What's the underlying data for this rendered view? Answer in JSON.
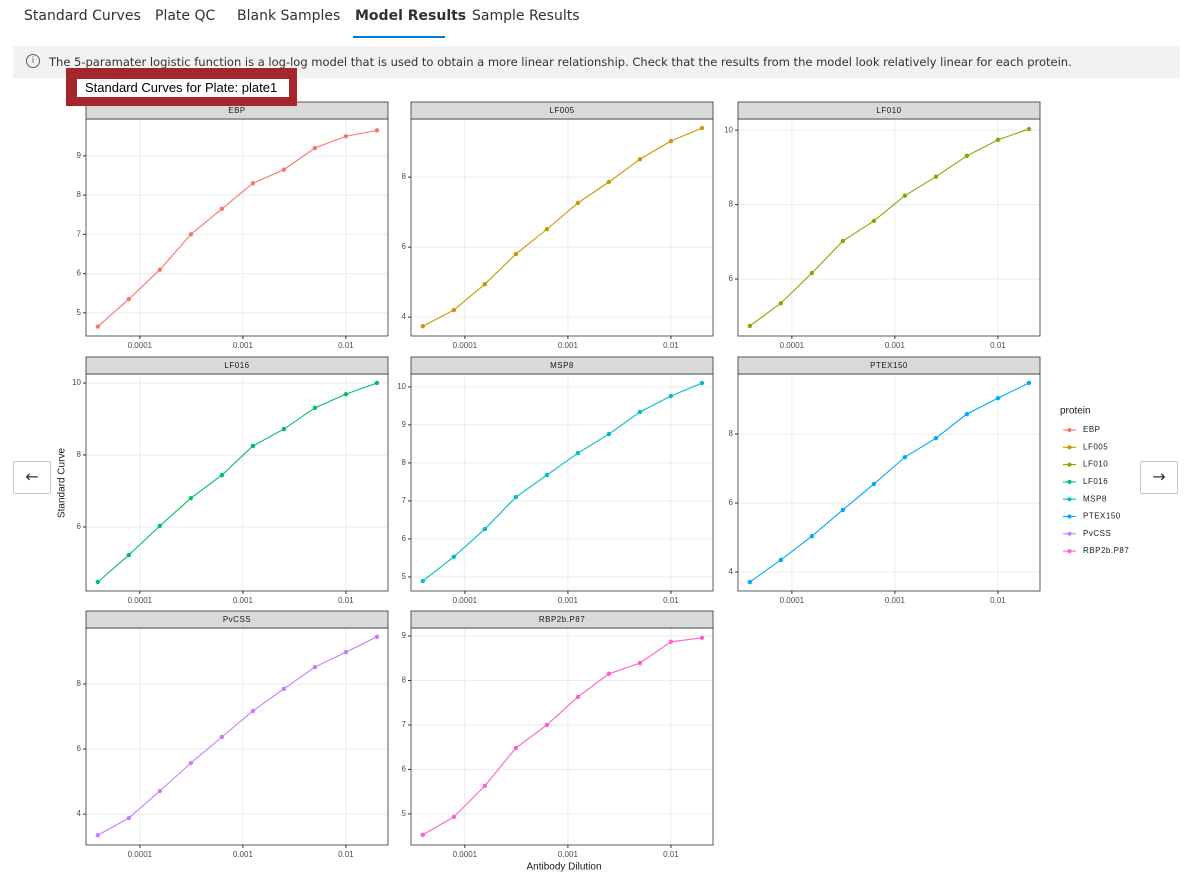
{
  "tabs": [
    "Standard Curves",
    "Plate QC",
    "Blank Samples",
    "Model Results",
    "Sample Results"
  ],
  "info": "The 5-paramater logistic function is a log-log model that is used to obtain a more linear relationship. Check that the results from the model look relatively linear for each protein.",
  "plot_title": "Standard Curves for Plate: plate1",
  "chart_data": {
    "type": "line",
    "x_label": "Antibody Dilution",
    "y_label": "Standard Curve",
    "legend_title": "protein",
    "log_x": true,
    "grid": true,
    "x": [
      3.90625e-05,
      7.8125e-05,
      0.00015625,
      0.0003125,
      0.000625,
      0.00125,
      0.0025,
      0.005,
      0.01,
      0.02
    ],
    "xlim": [
      3e-05,
      0.0256
    ],
    "xticks": [
      0.0001,
      0.001,
      0.01
    ],
    "series": [
      {
        "name": "EBP",
        "color": "#F8766D",
        "values": [
          4.65,
          5.35,
          6.1,
          7.0,
          7.65,
          8.3,
          8.65,
          9.2,
          9.5,
          9.65
        ],
        "ylim": [
          4.41,
          9.94
        ],
        "yticks": [
          5,
          6,
          7,
          8,
          9
        ]
      },
      {
        "name": "LF005",
        "color": "#CD9600",
        "values": [
          3.74,
          4.2,
          4.94,
          5.8,
          6.51,
          7.26,
          7.86,
          8.51,
          9.03,
          9.4
        ],
        "ylim": [
          3.46,
          9.66
        ],
        "yticks": [
          4,
          6,
          8
        ]
      },
      {
        "name": "LF010",
        "color": "#7CAE00",
        "values": [
          4.74,
          5.35,
          6.16,
          7.02,
          7.56,
          8.24,
          8.75,
          9.31,
          9.74,
          10.03
        ],
        "ylim": [
          4.47,
          10.3
        ],
        "yticks": [
          6,
          8,
          10
        ]
      },
      {
        "name": "LF016",
        "color": "#00BE67",
        "values": [
          4.47,
          5.22,
          6.03,
          6.8,
          7.44,
          8.25,
          8.72,
          9.31,
          9.69,
          10.0
        ],
        "ylim": [
          4.22,
          10.25
        ],
        "yticks": [
          6,
          8,
          10
        ]
      },
      {
        "name": "MSP8",
        "color": "#00BFC4",
        "values": [
          4.89,
          5.53,
          6.26,
          7.1,
          7.68,
          8.26,
          8.76,
          9.34,
          9.76,
          10.1
        ],
        "ylim": [
          4.63,
          10.34
        ],
        "yticks": [
          5,
          6,
          7,
          8,
          9,
          10
        ]
      },
      {
        "name": "PTEX150",
        "color": "#00A9FF",
        "values": [
          3.71,
          4.35,
          5.04,
          5.8,
          6.55,
          7.33,
          7.88,
          8.58,
          9.04,
          9.48
        ],
        "ylim": [
          3.45,
          9.74
        ],
        "yticks": [
          4,
          6,
          8
        ]
      },
      {
        "name": "PvCSS",
        "color": "#C77CFF",
        "values": [
          3.35,
          3.88,
          4.71,
          5.57,
          6.37,
          7.17,
          7.85,
          8.52,
          8.98,
          9.45
        ],
        "ylim": [
          3.05,
          9.72
        ],
        "yticks": [
          4,
          6,
          8
        ]
      },
      {
        "name": "RBP2b.P87",
        "color": "#FF61CC",
        "values": [
          4.53,
          4.93,
          5.63,
          6.48,
          7.0,
          7.63,
          8.15,
          8.39,
          8.87,
          8.96
        ],
        "ylim": [
          4.3,
          9.18
        ],
        "yticks": [
          5,
          6,
          7,
          8,
          9
        ]
      }
    ]
  }
}
